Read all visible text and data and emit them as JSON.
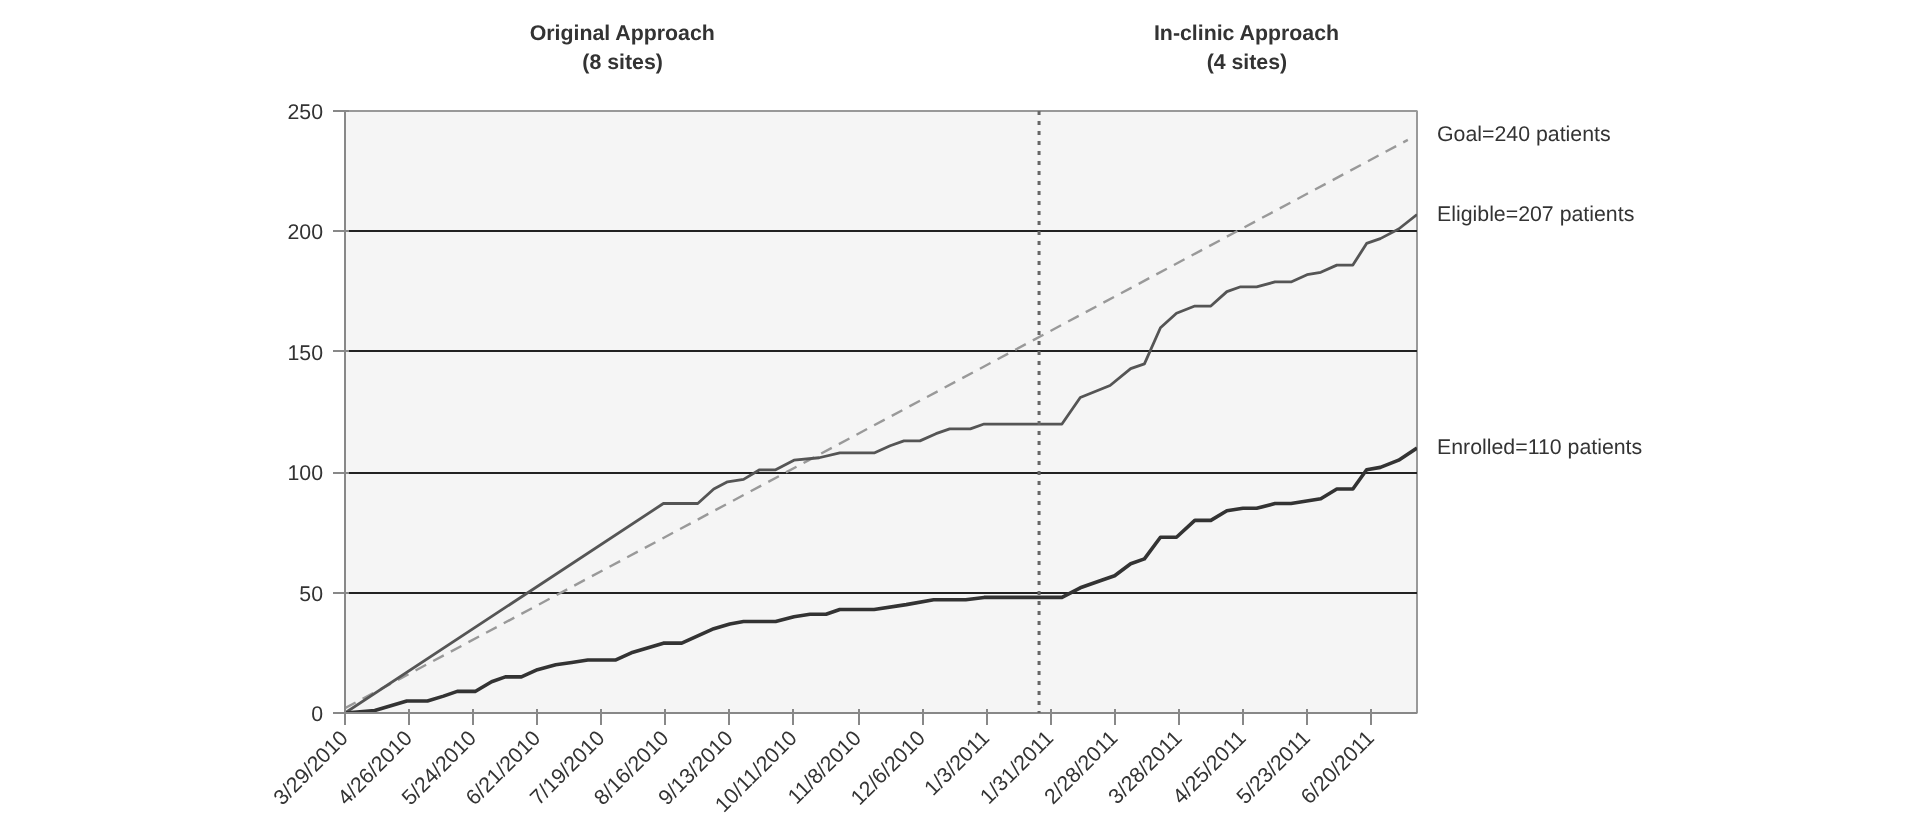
{
  "chart_data": {
    "type": "line",
    "xlim": [
      "2010-03-29",
      "2011-07-10"
    ],
    "ylim": [
      0,
      250
    ],
    "yticks": [
      0,
      50,
      100,
      150,
      200,
      250
    ],
    "xticks": [
      {
        "value": "2010-03-29",
        "label": "3/29/2010"
      },
      {
        "value": "2010-04-26",
        "label": "4/26/2010"
      },
      {
        "value": "2010-05-24",
        "label": "5/24/2010"
      },
      {
        "value": "2010-06-21",
        "label": "6/21/2010"
      },
      {
        "value": "2010-07-19",
        "label": "7/19/2010"
      },
      {
        "value": "2010-08-16",
        "label": "8/16/2010"
      },
      {
        "value": "2010-09-13",
        "label": "9/13/2010"
      },
      {
        "value": "2010-10-11",
        "label": "10/11/2010"
      },
      {
        "value": "2010-11-08",
        "label": "11/8/2010"
      },
      {
        "value": "2010-12-06",
        "label": "12/6/2010"
      },
      {
        "value": "2011-01-03",
        "label": "1/3/2011"
      },
      {
        "value": "2011-01-31",
        "label": "1/31/2011"
      },
      {
        "value": "2011-02-28",
        "label": "2/28/2011"
      },
      {
        "value": "2011-03-28",
        "label": "3/28/2011"
      },
      {
        "value": "2011-04-25",
        "label": "4/25/2011"
      },
      {
        "value": "2011-05-23",
        "label": "5/23/2011"
      },
      {
        "value": "2011-06-20",
        "label": "6/20/2011"
      }
    ],
    "grid": "y",
    "marker": "none",
    "series": [
      {
        "color": "#999999",
        "line_style": "dashed",
        "x": [
          "2010-03-29",
          "2011-07-06"
        ],
        "values": [
          2,
          238
        ]
      },
      {
        "color": "#555555",
        "line_style": "solid",
        "x": [
          "2010-03-29",
          "2010-08-15",
          "2010-08-30",
          "2010-09-06",
          "2010-09-12",
          "2010-09-19",
          "2010-09-26",
          "2010-10-03",
          "2010-10-11",
          "2010-10-22",
          "2010-10-31",
          "2010-11-15",
          "2010-11-22",
          "2010-11-28",
          "2010-12-05",
          "2010-12-12",
          "2010-12-18",
          "2010-12-27",
          "2011-01-02",
          "2011-02-05",
          "2011-02-13",
          "2011-02-26",
          "2011-03-07",
          "2011-03-13",
          "2011-03-20",
          "2011-03-27",
          "2011-04-04",
          "2011-04-11",
          "2011-04-18",
          "2011-04-24",
          "2011-05-01",
          "2011-05-09",
          "2011-05-16",
          "2011-05-23",
          "2011-05-29",
          "2011-06-05",
          "2011-06-12",
          "2011-06-18",
          "2011-06-24",
          "2011-07-02",
          "2011-07-10"
        ],
        "values": [
          0,
          87,
          87,
          93,
          96,
          97,
          101,
          101,
          105,
          106,
          108,
          108,
          111,
          113,
          113,
          116,
          118,
          118,
          120,
          120,
          131,
          136,
          143,
          145,
          160,
          166,
          169,
          169,
          175,
          177,
          177,
          179,
          179,
          182,
          183,
          186,
          186,
          195,
          197,
          201,
          207
        ]
      },
      {
        "color": "#333333",
        "line_style": "solid",
        "x": [
          "2010-03-29",
          "2010-04-11",
          "2010-04-18",
          "2010-04-25",
          "2010-05-04",
          "2010-05-11",
          "2010-05-17",
          "2010-05-25",
          "2010-06-01",
          "2010-06-07",
          "2010-06-14",
          "2010-06-21",
          "2010-06-29",
          "2010-07-06",
          "2010-07-13",
          "2010-07-25",
          "2010-08-01",
          "2010-08-15",
          "2010-08-23",
          "2010-09-06",
          "2010-09-13",
          "2010-09-19",
          "2010-10-03",
          "2010-10-11",
          "2010-10-18",
          "2010-10-25",
          "2010-10-31",
          "2010-11-15",
          "2010-11-29",
          "2010-12-11",
          "2010-12-25",
          "2011-01-02",
          "2011-02-05",
          "2011-02-13",
          "2011-02-22",
          "2011-02-28",
          "2011-03-07",
          "2011-03-13",
          "2011-03-20",
          "2011-03-27",
          "2011-04-04",
          "2011-04-11",
          "2011-04-18",
          "2011-04-25",
          "2011-05-01",
          "2011-05-09",
          "2011-05-16",
          "2011-05-29",
          "2011-06-05",
          "2011-06-12",
          "2011-06-18",
          "2011-06-24",
          "2011-07-02",
          "2011-07-10"
        ],
        "values": [
          0,
          1,
          3,
          5,
          5,
          7,
          9,
          9,
          13,
          15,
          15,
          18,
          20,
          21,
          22,
          22,
          25,
          29,
          29,
          35,
          37,
          38,
          38,
          40,
          41,
          41,
          43,
          43,
          45,
          47,
          47,
          48,
          48,
          52,
          55,
          57,
          62,
          64,
          73,
          73,
          80,
          80,
          84,
          85,
          85,
          87,
          87,
          89,
          93,
          93,
          101,
          102,
          105,
          110
        ]
      }
    ],
    "ref_lines": [
      {
        "axis": "x",
        "value": "2011-01-26",
        "color": "#666666",
        "line_style": "dotted"
      }
    ],
    "annotations": [
      "Original Approach\n(8 sites)",
      "In-clinic Approach\n(4 sites)",
      "Goal=240 patients",
      "Eligible=207 patients",
      "Enrolled=110 patients"
    ]
  }
}
